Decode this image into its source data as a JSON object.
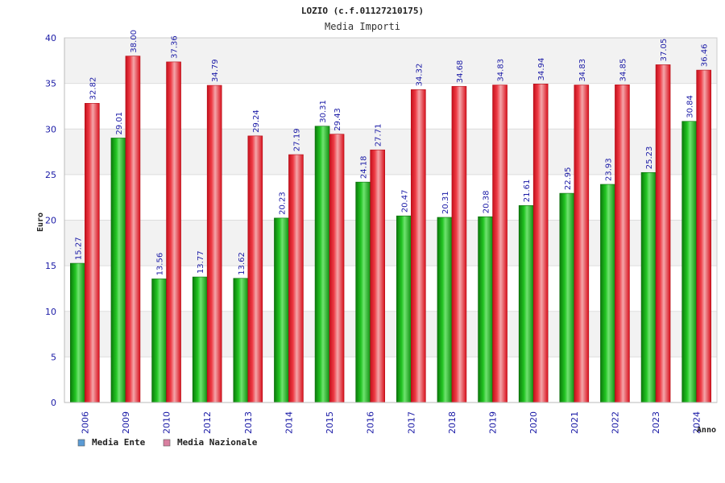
{
  "chart_data": {
    "type": "bar",
    "title": "LOZIO (c.f.01127210175)",
    "subtitle": "Media Importi",
    "xlabel": "Anno",
    "ylabel": "Euro",
    "ylim": [
      0,
      40
    ],
    "yticks": [
      0,
      5,
      10,
      15,
      20,
      25,
      30,
      35,
      40
    ],
    "grid": true,
    "legend_position": "bottom-left",
    "categories": [
      "2006",
      "2009",
      "2010",
      "2012",
      "2013",
      "2014",
      "2015",
      "2016",
      "2017",
      "2018",
      "2019",
      "2020",
      "2021",
      "2022",
      "2023",
      "2024"
    ],
    "series": [
      {
        "name": "Media Ente",
        "legend_color": "#5b9bd5",
        "bar_color": "#1db31d",
        "values": [
          15.27,
          29.01,
          13.56,
          13.77,
          13.62,
          20.23,
          30.31,
          24.18,
          20.47,
          20.31,
          20.38,
          21.61,
          22.95,
          23.93,
          25.23,
          30.84
        ],
        "labels": [
          "15.27",
          "29.01",
          "13.56",
          "13.77",
          "13.62",
          "20.23",
          "30.31",
          "24.18",
          "20.47",
          "20.31",
          "20.38",
          "21.61",
          "22.95",
          "23.93",
          "25.23",
          "30.84"
        ]
      },
      {
        "name": "Media Nazionale",
        "legend_color": "#d97fa0",
        "bar_color": "#e8202a",
        "values": [
          32.82,
          38.0,
          37.36,
          34.79,
          29.24,
          27.19,
          29.43,
          27.71,
          34.32,
          34.68,
          34.83,
          34.94,
          34.83,
          34.85,
          37.05,
          36.46
        ],
        "labels": [
          "32.82",
          "38.00",
          "37.36",
          "34.79",
          "29.24",
          "27.19",
          "29.43",
          "27.71",
          "34.32",
          "34.68",
          "34.83",
          "34.94",
          "34.83",
          "34.85",
          "37.05",
          "36.46"
        ]
      }
    ]
  }
}
